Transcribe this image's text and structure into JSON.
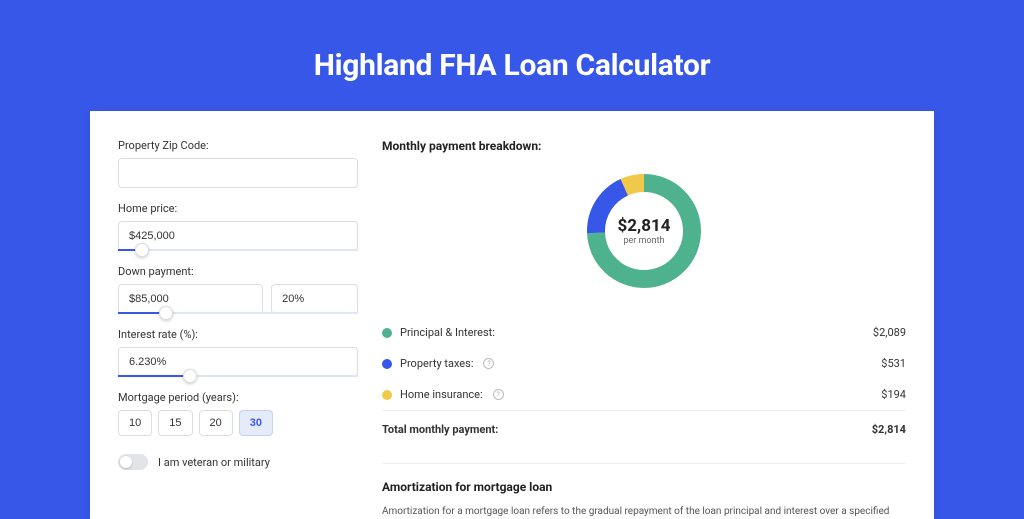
{
  "page": {
    "title": "Highland FHA Loan Calculator",
    "background_color": "#3757e8"
  },
  "form": {
    "zip": {
      "label": "Property Zip Code:",
      "value": ""
    },
    "home_price": {
      "label": "Home price:",
      "value": "$425,000",
      "slider_pct": 10
    },
    "down_payment": {
      "label": "Down payment:",
      "amount": "$85,000",
      "percent": "20%",
      "slider_pct": 20
    },
    "interest_rate": {
      "label": "Interest rate (%):",
      "value": "6.230%",
      "slider_pct": 30
    },
    "period": {
      "label": "Mortgage period (years):",
      "options": [
        "10",
        "15",
        "20",
        "30"
      ],
      "selected": "30"
    },
    "veteran": {
      "label": "I am veteran or military",
      "checked": false
    }
  },
  "breakdown": {
    "title": "Monthly payment breakdown:",
    "donut": {
      "center_amount": "$2,814",
      "center_label": "per month",
      "segments": [
        {
          "key": "principal_interest",
          "value": 2089,
          "color": "#4fb28f"
        },
        {
          "key": "property_taxes",
          "value": 531,
          "color": "#3757e8"
        },
        {
          "key": "home_insurance",
          "value": 194,
          "color": "#f0c94a"
        }
      ],
      "stroke_width": 18,
      "radius": 48
    },
    "items": [
      {
        "label": "Principal & Interest:",
        "amount": "$2,089",
        "color": "#4fb28f",
        "info": false
      },
      {
        "label": "Property taxes:",
        "amount": "$531",
        "color": "#3757e8",
        "info": true
      },
      {
        "label": "Home insurance:",
        "amount": "$194",
        "color": "#f0c94a",
        "info": true
      }
    ],
    "total": {
      "label": "Total monthly payment:",
      "amount": "$2,814"
    }
  },
  "amortization": {
    "title": "Amortization for mortgage loan",
    "text": "Amortization for a mortgage loan refers to the gradual repayment of the loan principal and interest over a specified"
  }
}
